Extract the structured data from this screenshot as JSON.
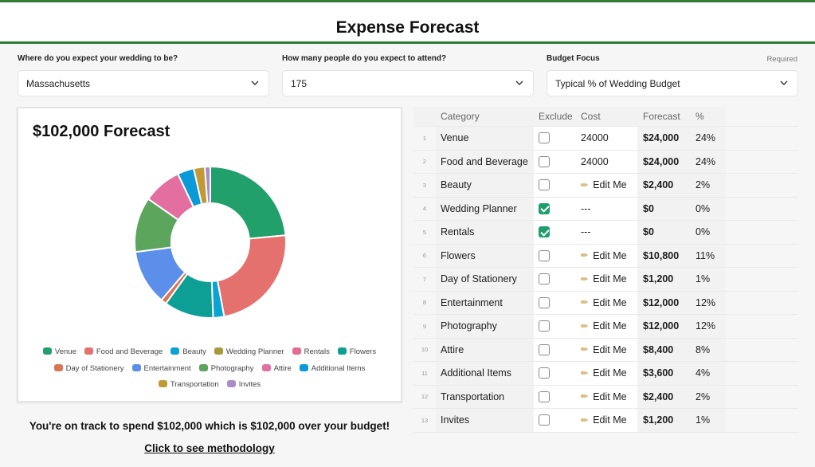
{
  "header": {
    "title": "Expense Forecast"
  },
  "form": {
    "location_label": "Where do you expect your wedding to be?",
    "location_value": "Massachusetts",
    "guests_label": "How many people do you expect to attend?",
    "guests_value": "175",
    "budget_label": "Budget Focus",
    "budget_value": "Typical % of Wedding Budget",
    "required_text": "Required"
  },
  "chart": {
    "title": "$102,000 Forecast"
  },
  "chart_data": {
    "type": "pie",
    "title": "$102,000 Forecast",
    "donut": true,
    "labels": [
      "Venue",
      "Food and Beverage",
      "Beauty",
      "Wedding Planner",
      "Rentals",
      "Flowers",
      "Day of Stationery",
      "Entertainment",
      "Photography",
      "Attire",
      "Additional Items",
      "Transportation",
      "Invites"
    ],
    "values": [
      24000,
      24000,
      2400,
      0,
      0,
      10800,
      1200,
      12000,
      12000,
      8400,
      3600,
      2400,
      1200
    ],
    "colors": [
      "#22a06b",
      "#e5716f",
      "#0ba3d4",
      "#a69a3d",
      "#e56d92",
      "#0d9f96",
      "#d97456",
      "#5b8fe9",
      "#5ba55d",
      "#e36ea0",
      "#0b9ad8",
      "#bf9a37",
      "#a98bcb"
    ],
    "legend_position": "bottom"
  },
  "legend": [
    {
      "label": "Venue",
      "color": "#22a06b"
    },
    {
      "label": "Food and Beverage",
      "color": "#e5716f"
    },
    {
      "label": "Beauty",
      "color": "#0ba3d4"
    },
    {
      "label": "Wedding Planner",
      "color": "#a69a3d"
    },
    {
      "label": "Rentals",
      "color": "#e56d92"
    },
    {
      "label": "Flowers",
      "color": "#0d9f96"
    },
    {
      "label": "Day of Stationery",
      "color": "#d97456"
    },
    {
      "label": "Entertainment",
      "color": "#5b8fe9"
    },
    {
      "label": "Photography",
      "color": "#5ba55d"
    },
    {
      "label": "Attire",
      "color": "#e36ea0"
    },
    {
      "label": "Additional Items",
      "color": "#0b9ad8"
    },
    {
      "label": "Transportation",
      "color": "#bf9a37"
    },
    {
      "label": "Invites",
      "color": "#a98bcb"
    }
  ],
  "table": {
    "headers": {
      "category": "Category",
      "exclude": "Exclude",
      "cost": "Cost",
      "forecast": "Forecast",
      "pct": "%"
    },
    "rows": [
      {
        "num": "1",
        "category": "Venue",
        "excluded": false,
        "cost": "24000",
        "editable": false,
        "forecast": "$24,000",
        "pct": "24%"
      },
      {
        "num": "2",
        "category": "Food and Beverage",
        "excluded": false,
        "cost": "24000",
        "editable": false,
        "forecast": "$24,000",
        "pct": "24%"
      },
      {
        "num": "3",
        "category": "Beauty",
        "excluded": false,
        "cost": "Edit Me",
        "editable": true,
        "forecast": "$2,400",
        "pct": "2%"
      },
      {
        "num": "4",
        "category": "Wedding Planner",
        "excluded": true,
        "cost": "---",
        "editable": false,
        "forecast": "$0",
        "pct": "0%"
      },
      {
        "num": "5",
        "category": "Rentals",
        "excluded": true,
        "cost": "---",
        "editable": false,
        "forecast": "$0",
        "pct": "0%"
      },
      {
        "num": "6",
        "category": "Flowers",
        "excluded": false,
        "cost": "Edit Me",
        "editable": true,
        "forecast": "$10,800",
        "pct": "11%"
      },
      {
        "num": "7",
        "category": "Day of Stationery",
        "excluded": false,
        "cost": "Edit Me",
        "editable": true,
        "forecast": "$1,200",
        "pct": "1%"
      },
      {
        "num": "8",
        "category": "Entertainment",
        "excluded": false,
        "cost": "Edit Me",
        "editable": true,
        "forecast": "$12,000",
        "pct": "12%"
      },
      {
        "num": "9",
        "category": "Photography",
        "excluded": false,
        "cost": "Edit Me",
        "editable": true,
        "forecast": "$12,000",
        "pct": "12%"
      },
      {
        "num": "10",
        "category": "Attire",
        "excluded": false,
        "cost": "Edit Me",
        "editable": true,
        "forecast": "$8,400",
        "pct": "8%"
      },
      {
        "num": "11",
        "category": "Additional Items",
        "excluded": false,
        "cost": "Edit Me",
        "editable": true,
        "forecast": "$3,600",
        "pct": "4%"
      },
      {
        "num": "12",
        "category": "Transportation",
        "excluded": false,
        "cost": "Edit Me",
        "editable": true,
        "forecast": "$2,400",
        "pct": "2%"
      },
      {
        "num": "13",
        "category": "Invites",
        "excluded": false,
        "cost": "Edit Me",
        "editable": true,
        "forecast": "$1,200",
        "pct": "1%"
      }
    ]
  },
  "summary": {
    "text": "You're on track to spend $102,000 which is $102,000 over your budget!",
    "methodology_link": "Click to see methodology"
  }
}
